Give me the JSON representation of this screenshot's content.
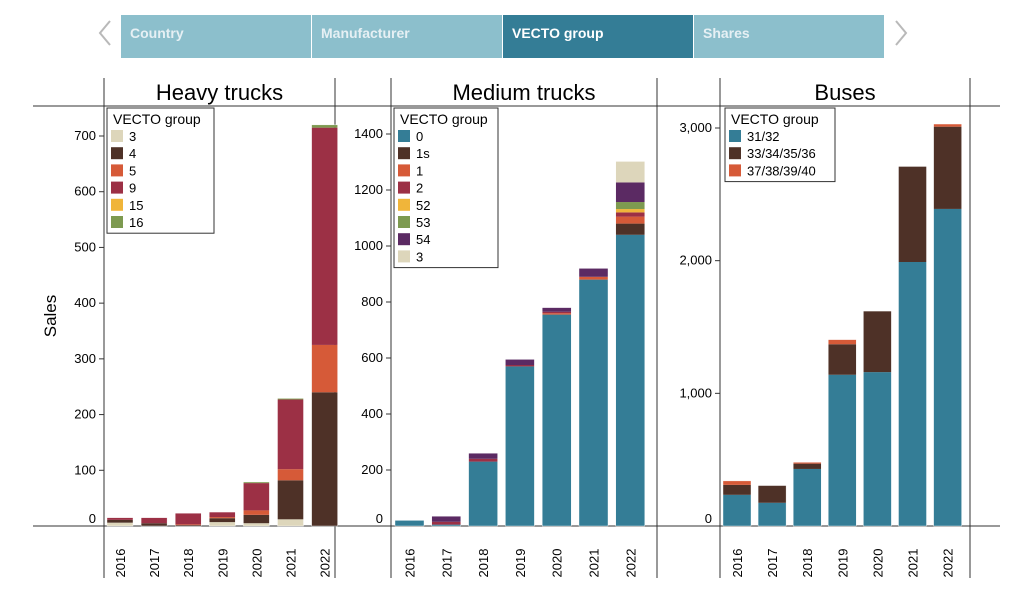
{
  "tabs": [
    {
      "label": "Country",
      "active": false
    },
    {
      "label": "Manufacturer",
      "active": false
    },
    {
      "label": "VECTO group",
      "active": true
    },
    {
      "label": "Shares",
      "active": false
    }
  ],
  "icons": {
    "prev": "chevron-left-icon",
    "next": "chevron-right-icon"
  },
  "ylabel": "Sales",
  "chart_data": [
    {
      "type": "bar",
      "stacked": true,
      "title": "Heavy trucks",
      "legend_title": "VECTO group",
      "legend_position": "top-left",
      "categories": [
        "2016",
        "2017",
        "2018",
        "2019",
        "2020",
        "2021",
        "2022"
      ],
      "ylim": [
        0,
        730
      ],
      "yticks": [
        0,
        100,
        200,
        300,
        400,
        500,
        600,
        700
      ],
      "ytick_labels": [
        "0",
        "100",
        "200",
        "300",
        "400",
        "500",
        "600",
        "700"
      ],
      "series": [
        {
          "name": "3",
          "color": "#ddd6bb",
          "values": [
            6,
            0,
            0,
            7,
            5,
            12,
            0
          ]
        },
        {
          "name": "4",
          "color": "#4e3127",
          "values": [
            5,
            5,
            2,
            7,
            15,
            70,
            240
          ]
        },
        {
          "name": "5",
          "color": "#d65a38",
          "values": [
            0,
            0,
            1,
            2,
            8,
            20,
            85
          ]
        },
        {
          "name": "9",
          "color": "#9c3045",
          "values": [
            4,
            10,
            20,
            9,
            49,
            125,
            390
          ]
        },
        {
          "name": "15",
          "color": "#f0b53a",
          "values": [
            0,
            0,
            0,
            0,
            0,
            0,
            0
          ]
        },
        {
          "name": "16",
          "color": "#7d9a50",
          "values": [
            0,
            0,
            0,
            0,
            2,
            2,
            5
          ]
        }
      ]
    },
    {
      "type": "bar",
      "stacked": true,
      "title": "Medium trucks",
      "legend_title": "VECTO group",
      "legend_position": "top-left",
      "categories": [
        "2016",
        "2017",
        "2018",
        "2019",
        "2020",
        "2021",
        "2022"
      ],
      "ylim": [
        0,
        1480
      ],
      "yticks": [
        0,
        200,
        400,
        600,
        800,
        1000,
        1200,
        1400
      ],
      "ytick_labels": [
        "0",
        "200",
        "400",
        "600",
        "800",
        "1000",
        "1200",
        "1400"
      ],
      "series": [
        {
          "name": "0",
          "color": "#347d96",
          "values": [
            20,
            5,
            230,
            570,
            755,
            880,
            1040
          ]
        },
        {
          "name": "1s",
          "color": "#4e3127",
          "values": [
            0,
            0,
            0,
            0,
            0,
            0,
            40
          ]
        },
        {
          "name": "1",
          "color": "#d65a38",
          "values": [
            0,
            0,
            0,
            0,
            5,
            10,
            25
          ]
        },
        {
          "name": "2",
          "color": "#9c3045",
          "values": [
            0,
            10,
            10,
            5,
            5,
            0,
            15
          ]
        },
        {
          "name": "52",
          "color": "#f0b53a",
          "values": [
            0,
            0,
            0,
            0,
            0,
            0,
            12
          ]
        },
        {
          "name": "53",
          "color": "#7d9a50",
          "values": [
            0,
            0,
            0,
            0,
            0,
            0,
            25
          ]
        },
        {
          "name": "54",
          "color": "#5b2a63",
          "values": [
            0,
            20,
            20,
            20,
            15,
            30,
            70
          ]
        },
        {
          "name": "3",
          "color": "#ddd6bb",
          "values": [
            0,
            0,
            0,
            0,
            0,
            0,
            75
          ]
        }
      ]
    },
    {
      "type": "bar",
      "stacked": true,
      "title": "Buses",
      "legend_title": "VECTO group",
      "legend_position": "top-left",
      "categories": [
        "2016",
        "2017",
        "2018",
        "2019",
        "2020",
        "2021",
        "2022"
      ],
      "ylim": [
        0,
        3100
      ],
      "yticks": [
        0,
        1000,
        2000,
        3000
      ],
      "ytick_labels": [
        "0",
        "1,000",
        "2,000",
        "3,000"
      ],
      "series": [
        {
          "name": "31/32",
          "color": "#347d96",
          "values": [
            235,
            175,
            430,
            1140,
            1160,
            1990,
            2390
          ]
        },
        {
          "name": "33/34/35/36",
          "color": "#4e3127",
          "values": [
            75,
            130,
            40,
            230,
            460,
            720,
            620
          ]
        },
        {
          "name": "37/38/39/40",
          "color": "#d65a38",
          "values": [
            30,
            0,
            10,
            35,
            0,
            0,
            20
          ]
        }
      ]
    }
  ]
}
